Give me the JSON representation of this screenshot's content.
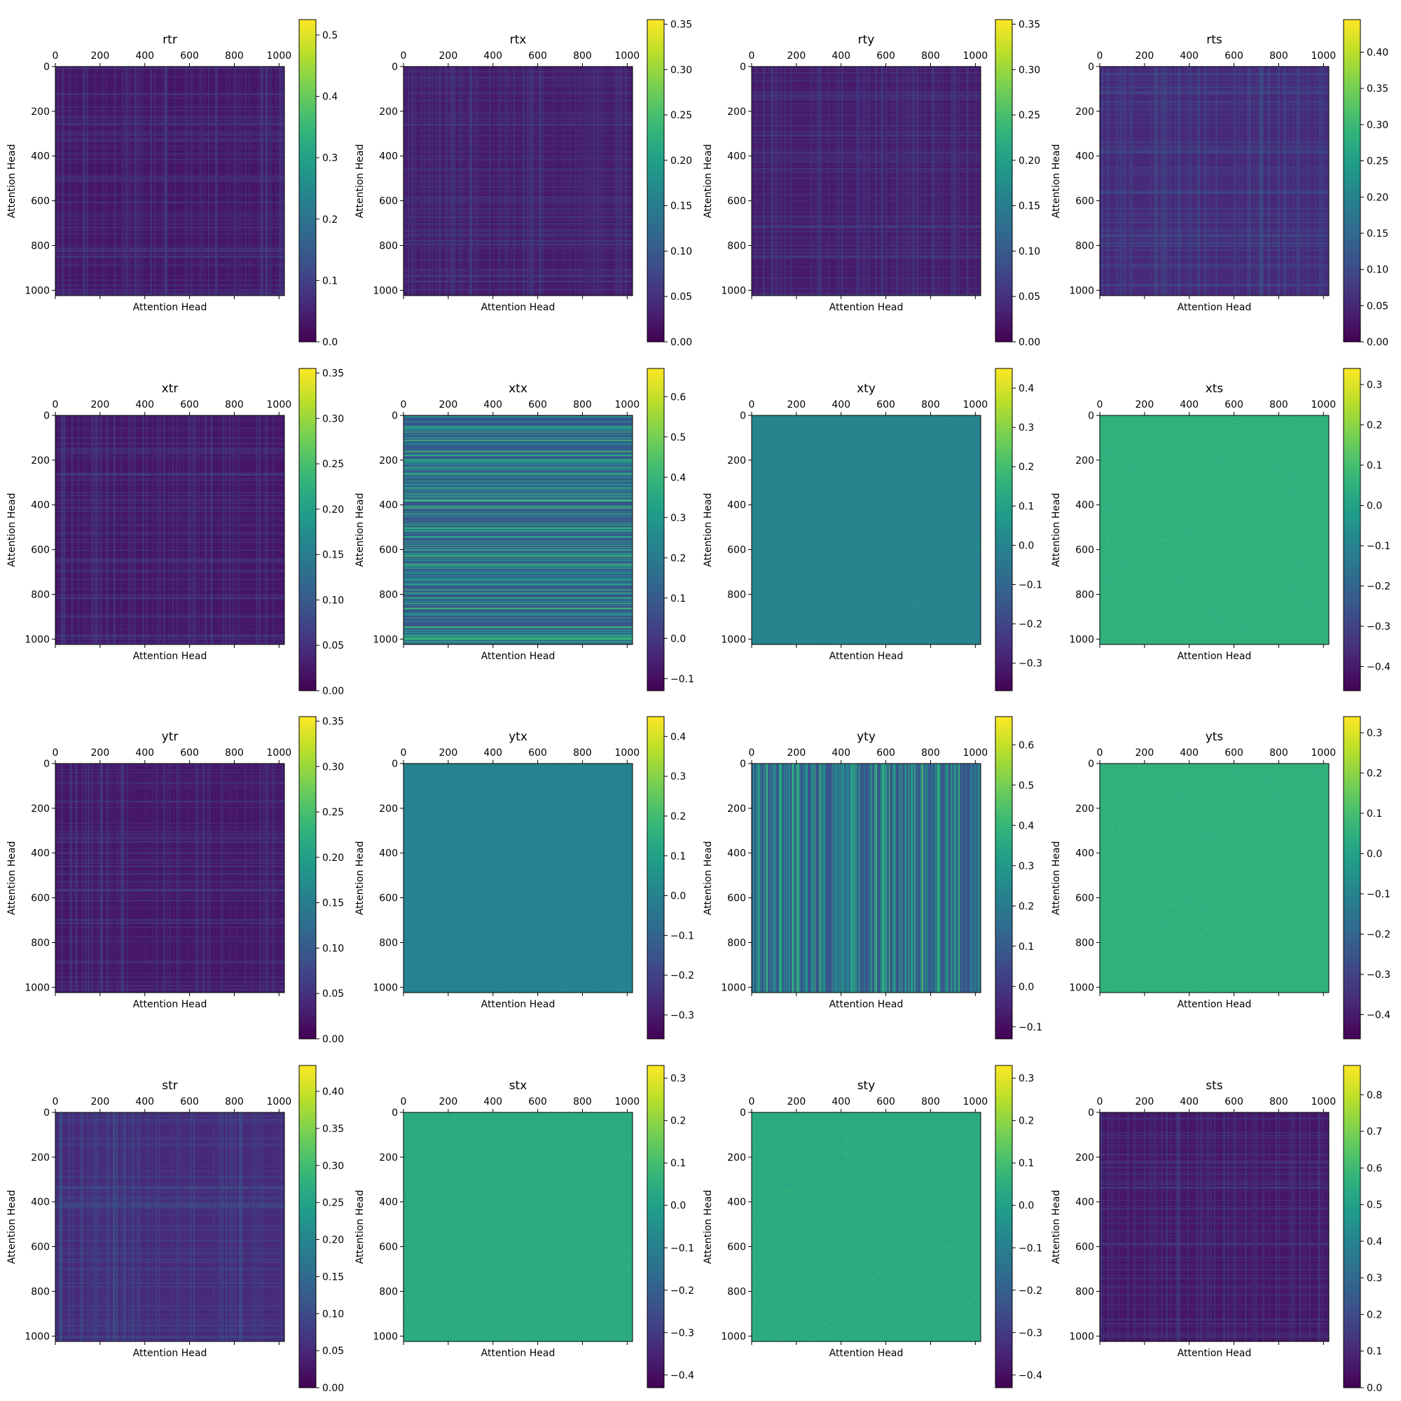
{
  "figure": {
    "x_label": "Attention Head",
    "y_label": "Attention Head"
  },
  "chart_data": [
    {
      "type": "heatmap",
      "title": "rtr",
      "xlabel": "Attention Head",
      "ylabel": "Attention Head",
      "x_range": [
        0,
        1024
      ],
      "y_range": [
        0,
        1024
      ],
      "axis_ticks": [
        0,
        200,
        400,
        600,
        800,
        1000
      ],
      "colorbar_range": [
        0.0,
        0.525
      ],
      "colorbar_ticks": [
        "0.0",
        "0.1",
        "0.2",
        "0.3",
        "0.4",
        "0.5"
      ],
      "colorbar_values": [
        0.0,
        0.1,
        0.2,
        0.3,
        0.4,
        0.5
      ],
      "typical_value": 0.03,
      "texture": "grid"
    },
    {
      "type": "heatmap",
      "title": "rtx",
      "xlabel": "Attention Head",
      "ylabel": "Attention Head",
      "x_range": [
        0,
        1024
      ],
      "y_range": [
        0,
        1024
      ],
      "axis_ticks": [
        0,
        200,
        400,
        600,
        800,
        1000
      ],
      "colorbar_range": [
        0.0,
        0.355
      ],
      "colorbar_ticks": [
        "0.00",
        "0.05",
        "0.10",
        "0.15",
        "0.20",
        "0.25",
        "0.30",
        "0.35"
      ],
      "colorbar_values": [
        0.0,
        0.05,
        0.1,
        0.15,
        0.2,
        0.25,
        0.3,
        0.35
      ],
      "typical_value": 0.025,
      "texture": "grid"
    },
    {
      "type": "heatmap",
      "title": "rty",
      "xlabel": "Attention Head",
      "ylabel": "Attention Head",
      "x_range": [
        0,
        1024
      ],
      "y_range": [
        0,
        1024
      ],
      "axis_ticks": [
        0,
        200,
        400,
        600,
        800,
        1000
      ],
      "colorbar_range": [
        0.0,
        0.355
      ],
      "colorbar_ticks": [
        "0.00",
        "0.05",
        "0.10",
        "0.15",
        "0.20",
        "0.25",
        "0.30",
        "0.35"
      ],
      "colorbar_values": [
        0.0,
        0.05,
        0.1,
        0.15,
        0.2,
        0.25,
        0.3,
        0.35
      ],
      "typical_value": 0.025,
      "texture": "grid"
    },
    {
      "type": "heatmap",
      "title": "rts",
      "xlabel": "Attention Head",
      "ylabel": "Attention Head",
      "x_range": [
        0,
        1024
      ],
      "y_range": [
        0,
        1024
      ],
      "axis_ticks": [
        0,
        200,
        400,
        600,
        800,
        1000
      ],
      "colorbar_range": [
        0.0,
        0.445
      ],
      "colorbar_ticks": [
        "0.00",
        "0.05",
        "0.10",
        "0.15",
        "0.20",
        "0.25",
        "0.30",
        "0.35",
        "0.40"
      ],
      "colorbar_values": [
        0.0,
        0.05,
        0.1,
        0.15,
        0.2,
        0.25,
        0.3,
        0.35,
        0.4
      ],
      "typical_value": 0.05,
      "texture": "grid"
    },
    {
      "type": "heatmap",
      "title": "xtr",
      "xlabel": "Attention Head",
      "ylabel": "Attention Head",
      "x_range": [
        0,
        1024
      ],
      "y_range": [
        0,
        1024
      ],
      "axis_ticks": [
        0,
        200,
        400,
        600,
        800,
        1000
      ],
      "colorbar_range": [
        0.0,
        0.355
      ],
      "colorbar_ticks": [
        "0.00",
        "0.05",
        "0.10",
        "0.15",
        "0.20",
        "0.25",
        "0.30",
        "0.35"
      ],
      "colorbar_values": [
        0.0,
        0.05,
        0.1,
        0.15,
        0.2,
        0.25,
        0.3,
        0.35
      ],
      "typical_value": 0.02,
      "texture": "grid"
    },
    {
      "type": "heatmap",
      "title": "xtx",
      "xlabel": "Attention Head",
      "ylabel": "Attention Head",
      "x_range": [
        0,
        1024
      ],
      "y_range": [
        0,
        1024
      ],
      "axis_ticks": [
        0,
        200,
        400,
        600,
        800,
        1000
      ],
      "colorbar_range": [
        -0.13,
        0.67
      ],
      "colorbar_ticks": [
        "−0.1",
        "0.0",
        "0.1",
        "0.2",
        "0.3",
        "0.4",
        "0.5",
        "0.6"
      ],
      "colorbar_values": [
        -0.1,
        0.0,
        0.1,
        0.2,
        0.3,
        0.4,
        0.5,
        0.6
      ],
      "typical_value": 0.08,
      "texture": "rows"
    },
    {
      "type": "heatmap",
      "title": "xty",
      "xlabel": "Attention Head",
      "ylabel": "Attention Head",
      "x_range": [
        0,
        1024
      ],
      "y_range": [
        0,
        1024
      ],
      "axis_ticks": [
        0,
        200,
        400,
        600,
        800,
        1000
      ],
      "colorbar_range": [
        -0.37,
        0.45
      ],
      "colorbar_ticks": [
        "−0.3",
        "−0.2",
        "−0.1",
        "0.0",
        "0.1",
        "0.2",
        "0.3",
        "0.4"
      ],
      "colorbar_values": [
        -0.3,
        -0.2,
        -0.1,
        0.0,
        0.1,
        0.2,
        0.3,
        0.4
      ],
      "typical_value": 0.0,
      "texture": "flat"
    },
    {
      "type": "heatmap",
      "title": "xts",
      "xlabel": "Attention Head",
      "ylabel": "Attention Head",
      "x_range": [
        0,
        1024
      ],
      "y_range": [
        0,
        1024
      ],
      "axis_ticks": [
        0,
        200,
        400,
        600,
        800,
        1000
      ],
      "colorbar_range": [
        -0.46,
        0.34
      ],
      "colorbar_ticks": [
        "−0.4",
        "−0.3",
        "−0.2",
        "−0.1",
        "0.0",
        "0.1",
        "0.2",
        "0.3"
      ],
      "colorbar_values": [
        -0.4,
        -0.3,
        -0.2,
        -0.1,
        0.0,
        0.1,
        0.2,
        0.3
      ],
      "typical_value": 0.05,
      "texture": "flat"
    },
    {
      "type": "heatmap",
      "title": "ytr",
      "xlabel": "Attention Head",
      "ylabel": "Attention Head",
      "x_range": [
        0,
        1024
      ],
      "y_range": [
        0,
        1024
      ],
      "axis_ticks": [
        0,
        200,
        400,
        600,
        800,
        1000
      ],
      "colorbar_range": [
        0.0,
        0.355
      ],
      "colorbar_ticks": [
        "0.00",
        "0.05",
        "0.10",
        "0.15",
        "0.20",
        "0.25",
        "0.30",
        "0.35"
      ],
      "colorbar_values": [
        0.0,
        0.05,
        0.1,
        0.15,
        0.2,
        0.25,
        0.3,
        0.35
      ],
      "typical_value": 0.02,
      "texture": "grid"
    },
    {
      "type": "heatmap",
      "title": "ytx",
      "xlabel": "Attention Head",
      "ylabel": "Attention Head",
      "x_range": [
        0,
        1024
      ],
      "y_range": [
        0,
        1024
      ],
      "axis_ticks": [
        0,
        200,
        400,
        600,
        800,
        1000
      ],
      "colorbar_range": [
        -0.36,
        0.45
      ],
      "colorbar_ticks": [
        "−0.3",
        "−0.2",
        "−0.1",
        "0.0",
        "0.1",
        "0.2",
        "0.3",
        "0.4"
      ],
      "colorbar_values": [
        -0.3,
        -0.2,
        -0.1,
        0.0,
        0.1,
        0.2,
        0.3,
        0.4
      ],
      "typical_value": 0.0,
      "texture": "flat"
    },
    {
      "type": "heatmap",
      "title": "yty",
      "xlabel": "Attention Head",
      "ylabel": "Attention Head",
      "x_range": [
        0,
        1024
      ],
      "y_range": [
        0,
        1024
      ],
      "axis_ticks": [
        0,
        200,
        400,
        600,
        800,
        1000
      ],
      "colorbar_range": [
        -0.13,
        0.67
      ],
      "colorbar_ticks": [
        "−0.1",
        "0.0",
        "0.1",
        "0.2",
        "0.3",
        "0.4",
        "0.5",
        "0.6"
      ],
      "colorbar_values": [
        -0.1,
        0.0,
        0.1,
        0.2,
        0.3,
        0.4,
        0.5,
        0.6
      ],
      "typical_value": 0.08,
      "texture": "cols"
    },
    {
      "type": "heatmap",
      "title": "yts",
      "xlabel": "Attention Head",
      "ylabel": "Attention Head",
      "x_range": [
        0,
        1024
      ],
      "y_range": [
        0,
        1024
      ],
      "axis_ticks": [
        0,
        200,
        400,
        600,
        800,
        1000
      ],
      "colorbar_range": [
        -0.46,
        0.34
      ],
      "colorbar_ticks": [
        "−0.4",
        "−0.3",
        "−0.2",
        "−0.1",
        "0.0",
        "0.1",
        "0.2",
        "0.3"
      ],
      "colorbar_values": [
        -0.4,
        -0.3,
        -0.2,
        -0.1,
        0.0,
        0.1,
        0.2,
        0.3
      ],
      "typical_value": 0.05,
      "texture": "flat"
    },
    {
      "type": "heatmap",
      "title": "str",
      "xlabel": "Attention Head",
      "ylabel": "Attention Head",
      "x_range": [
        0,
        1024
      ],
      "y_range": [
        0,
        1024
      ],
      "axis_ticks": [
        0,
        200,
        400,
        600,
        800,
        1000
      ],
      "colorbar_range": [
        0.0,
        0.435
      ],
      "colorbar_ticks": [
        "0.00",
        "0.05",
        "0.10",
        "0.15",
        "0.20",
        "0.25",
        "0.30",
        "0.35",
        "0.40"
      ],
      "colorbar_values": [
        0.0,
        0.05,
        0.1,
        0.15,
        0.2,
        0.25,
        0.3,
        0.35,
        0.4
      ],
      "typical_value": 0.05,
      "texture": "grid"
    },
    {
      "type": "heatmap",
      "title": "stx",
      "xlabel": "Attention Head",
      "ylabel": "Attention Head",
      "x_range": [
        0,
        1024
      ],
      "y_range": [
        0,
        1024
      ],
      "axis_ticks": [
        0,
        200,
        400,
        600,
        800,
        1000
      ],
      "colorbar_range": [
        -0.43,
        0.33
      ],
      "colorbar_ticks": [
        "−0.4",
        "−0.3",
        "−0.2",
        "−0.1",
        "0.0",
        "0.1",
        "0.2",
        "0.3"
      ],
      "colorbar_values": [
        -0.4,
        -0.3,
        -0.2,
        -0.1,
        0.0,
        0.1,
        0.2,
        0.3
      ],
      "typical_value": 0.04,
      "texture": "flat"
    },
    {
      "type": "heatmap",
      "title": "sty",
      "xlabel": "Attention Head",
      "ylabel": "Attention Head",
      "x_range": [
        0,
        1024
      ],
      "y_range": [
        0,
        1024
      ],
      "axis_ticks": [
        0,
        200,
        400,
        600,
        800,
        1000
      ],
      "colorbar_range": [
        -0.43,
        0.33
      ],
      "colorbar_ticks": [
        "−0.4",
        "−0.3",
        "−0.2",
        "−0.1",
        "0.0",
        "0.1",
        "0.2",
        "0.3"
      ],
      "colorbar_values": [
        -0.4,
        -0.3,
        -0.2,
        -0.1,
        0.0,
        0.1,
        0.2,
        0.3
      ],
      "typical_value": 0.04,
      "texture": "flat"
    },
    {
      "type": "heatmap",
      "title": "sts",
      "xlabel": "Attention Head",
      "ylabel": "Attention Head",
      "x_range": [
        0,
        1024
      ],
      "y_range": [
        0,
        1024
      ],
      "axis_ticks": [
        0,
        200,
        400,
        600,
        800,
        1000
      ],
      "colorbar_range": [
        0.0,
        0.88
      ],
      "colorbar_ticks": [
        "0.0",
        "0.1",
        "0.2",
        "0.3",
        "0.4",
        "0.5",
        "0.6",
        "0.7",
        "0.8"
      ],
      "colorbar_values": [
        0.0,
        0.1,
        0.2,
        0.3,
        0.4,
        0.5,
        0.6,
        0.7,
        0.8
      ],
      "typical_value": 0.05,
      "texture": "grid"
    }
  ]
}
